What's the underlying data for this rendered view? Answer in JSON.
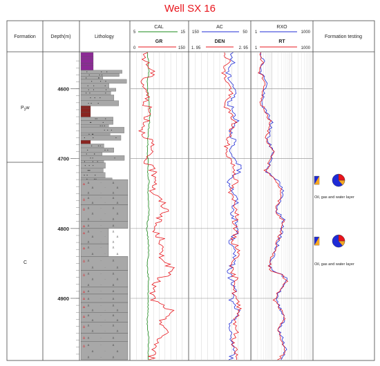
{
  "title": "Well SX 16",
  "header": {
    "formation": "Formation",
    "depth": "Depth(m)",
    "lithology": "Lithology",
    "testing": "Formation testing"
  },
  "formations": {
    "upper": "P",
    "upper_sub": "3",
    "upper_suffix": "w",
    "lower": "C"
  },
  "curves": {
    "cal": {
      "label": "CAL",
      "min": "5",
      "max": "15"
    },
    "gr": {
      "label": "GR",
      "min": "0",
      "max": "150"
    },
    "ac": {
      "label": "AC",
      "min": "150",
      "max": "50"
    },
    "den": {
      "label": "DEN",
      "min": "1. 95",
      "max": "2. 95"
    },
    "rxo": {
      "label": "RXO",
      "min": "1",
      "max": "1000"
    },
    "rt": {
      "label": "RT",
      "min": "1",
      "max": "1000"
    }
  },
  "depth_ticks": [
    "4600",
    "4700",
    "4800",
    "4900"
  ],
  "testing_results": [
    "Oil, gas and water layer",
    "Oil, gas and water layer"
  ],
  "colors": {
    "title": "#e8141b",
    "gr": "#e8141b",
    "cal": "#1a8a1a",
    "blue": "#1f2bd6",
    "red": "#e8141b",
    "litho_gray": "#a8a8a8",
    "litho_purple": "#8c2a96",
    "litho_brown": "#8a2420",
    "pie_blue": "#1f2bd6",
    "pie_red": "#e8141b",
    "pie_orange": "#f5a623"
  },
  "chart_data": {
    "type": "line",
    "depth_range": [
      4548,
      4988
    ],
    "series": [
      {
        "name": "CAL",
        "x": [
          8.0,
          8.1,
          8.2,
          7.9,
          8.0,
          8.2,
          8.4,
          8.3,
          8.1,
          8.0,
          7.9,
          8.1,
          8.0,
          8.2,
          8.0,
          8.1,
          8.3,
          8.0,
          7.8,
          8.1,
          8.2,
          8.0,
          7.9,
          8.2,
          8.1,
          8.0,
          8.1,
          7.9,
          8.0,
          8.2,
          8.1,
          8.0
        ]
      },
      {
        "name": "GR",
        "x": [
          35,
          40,
          60,
          30,
          45,
          38,
          50,
          42,
          30,
          55,
          48,
          40,
          60,
          72,
          55,
          80,
          95,
          70,
          60,
          85,
          75,
          90,
          110,
          70,
          55,
          60,
          105,
          80,
          95,
          75,
          60,
          55
        ]
      },
      {
        "name": "AC",
        "x": [
          82,
          78,
          88,
          80,
          72,
          85,
          78,
          70,
          82,
          75,
          88,
          70,
          68,
          85,
          78,
          72,
          80,
          75,
          70,
          82,
          78,
          72,
          88,
          80,
          75,
          82,
          70,
          78,
          85,
          80,
          76,
          82
        ]
      },
      {
        "name": "DEN",
        "x": [
          2.55,
          2.6,
          2.5,
          2.58,
          2.65,
          2.52,
          2.6,
          2.7,
          2.62,
          2.58,
          2.55,
          2.65,
          2.7,
          2.72,
          2.6,
          2.68,
          2.75,
          2.7,
          2.72,
          2.65,
          2.78,
          2.7,
          2.62,
          2.74,
          2.68,
          2.72,
          2.8,
          2.7,
          2.74,
          2.66,
          2.72,
          2.7
        ]
      },
      {
        "name": "RXO",
        "x": [
          3,
          4,
          2.5,
          6,
          4,
          3,
          5,
          10,
          8,
          6,
          12,
          9,
          5,
          20,
          35,
          25,
          18,
          40,
          30,
          22,
          15,
          10,
          8,
          60,
          25,
          15,
          30,
          45,
          20,
          35,
          50,
          25
        ]
      },
      {
        "name": "RT",
        "x": [
          2.5,
          3.5,
          2.2,
          5,
          3.5,
          2.8,
          4.5,
          9,
          7,
          5,
          11,
          8,
          4.5,
          18,
          30,
          22,
          15,
          35,
          28,
          20,
          13,
          9,
          7,
          55,
          22,
          13,
          28,
          40,
          18,
          30,
          45,
          22
        ]
      }
    ]
  }
}
